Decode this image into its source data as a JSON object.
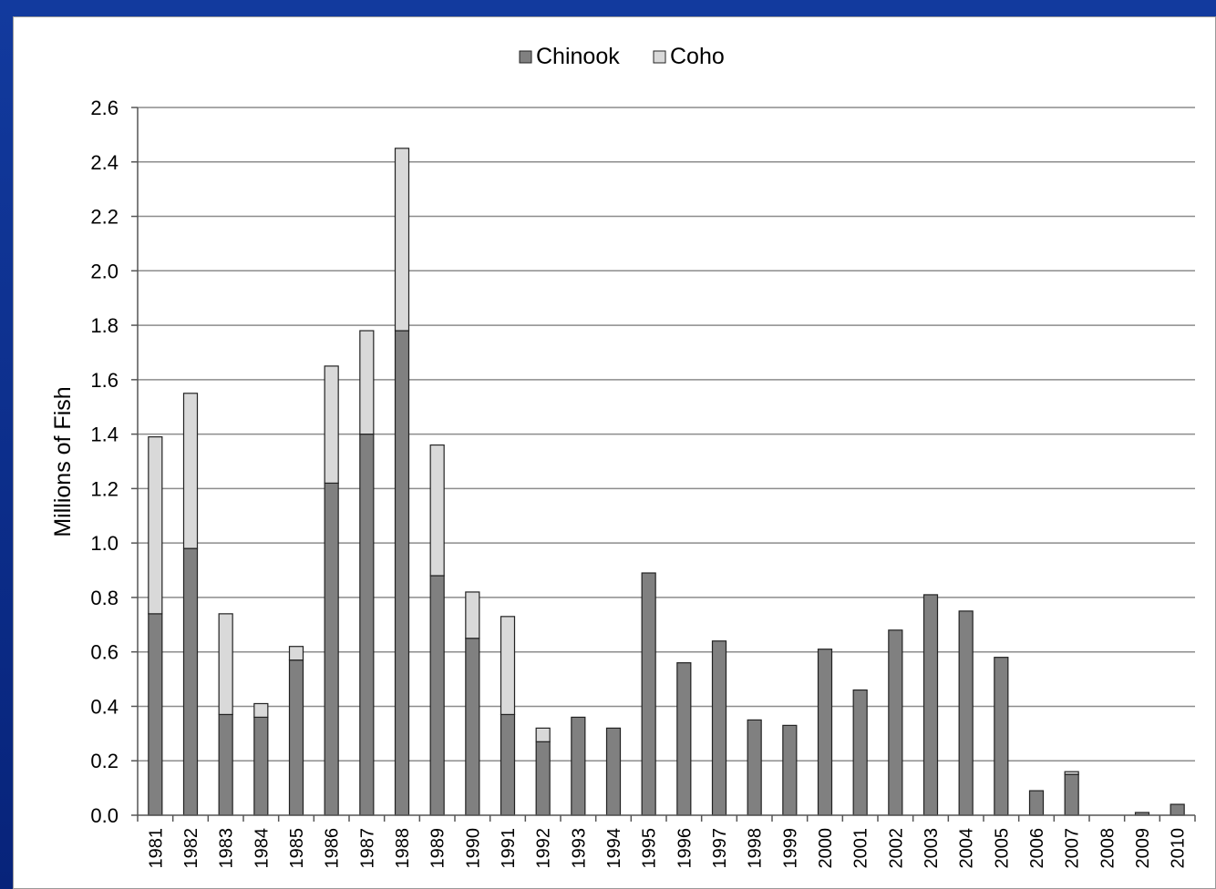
{
  "colors": {
    "chinook": "#808080",
    "coho": "#d9d9d9",
    "stroke": "#222222",
    "grid": "#8c8c8c"
  },
  "chart_data": {
    "type": "bar",
    "stacked": true,
    "title": "",
    "xlabel": "",
    "ylabel": "Millions of Fish",
    "ylim": [
      0,
      2.6
    ],
    "yticks": [
      "0.0",
      "0.2",
      "0.4",
      "0.6",
      "0.8",
      "1.0",
      "1.2",
      "1.4",
      "1.6",
      "1.8",
      "2.0",
      "2.2",
      "2.4",
      "2.6"
    ],
    "grid": true,
    "legend_position": "top-center",
    "categories": [
      "1981",
      "1982",
      "1983",
      "1984",
      "1985",
      "1986",
      "1987",
      "1988",
      "1989",
      "1990",
      "1991",
      "1992",
      "1993",
      "1994",
      "1995",
      "1996",
      "1997",
      "1998",
      "1999",
      "2000",
      "2001",
      "2002",
      "2003",
      "2004",
      "2005",
      "2006",
      "2007",
      "2008",
      "2009",
      "2010"
    ],
    "series": [
      {
        "name": "Chinook",
        "values": [
          0.74,
          0.98,
          0.37,
          0.36,
          0.57,
          1.22,
          1.4,
          1.78,
          0.88,
          0.65,
          0.37,
          0.27,
          0.36,
          0.32,
          0.89,
          0.56,
          0.64,
          0.35,
          0.33,
          0.61,
          0.46,
          0.68,
          0.81,
          0.75,
          0.58,
          0.09,
          0.15,
          0.0,
          0.01,
          0.04
        ]
      },
      {
        "name": "Coho",
        "values": [
          0.65,
          0.57,
          0.37,
          0.05,
          0.05,
          0.43,
          0.38,
          0.67,
          0.48,
          0.17,
          0.36,
          0.05,
          0.0,
          0.0,
          0.0,
          0.0,
          0.0,
          0.0,
          0.0,
          0.0,
          0.0,
          0.0,
          0.0,
          0.0,
          0.0,
          0.0,
          0.01,
          0.0,
          0.0,
          0.0
        ]
      }
    ]
  }
}
